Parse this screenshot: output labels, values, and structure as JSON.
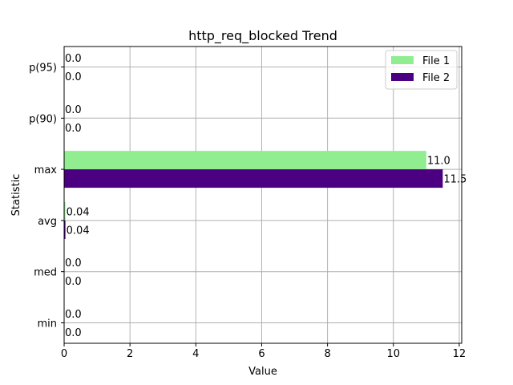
{
  "chart_data": {
    "type": "bar",
    "orientation": "horizontal",
    "title": "http_req_blocked Trend",
    "xlabel": "Value",
    "ylabel": "Statistic",
    "categories": [
      "min",
      "med",
      "avg",
      "max",
      "p(90)",
      "p(95)"
    ],
    "series": [
      {
        "name": "File 1",
        "color": "#90ee90",
        "values": [
          0.0,
          0.0,
          0.04,
          11.0,
          0.0,
          0.0
        ],
        "labels": [
          "0.0",
          "0.0",
          "0.04",
          "11.0",
          "0.0",
          "0.0"
        ]
      },
      {
        "name": "File 2",
        "color": "#4b0082",
        "values": [
          0.0,
          0.0,
          0.04,
          11.5,
          0.0,
          0.0
        ],
        "labels": [
          "0.0",
          "0.0",
          "0.04",
          "11.5",
          "0.0",
          "0.0"
        ]
      }
    ],
    "xlim": [
      0,
      12.075
    ],
    "xticks": [
      "0",
      "2",
      "4",
      "6",
      "8",
      "10",
      "12"
    ],
    "grid": true,
    "legend_position": "top-right"
  }
}
